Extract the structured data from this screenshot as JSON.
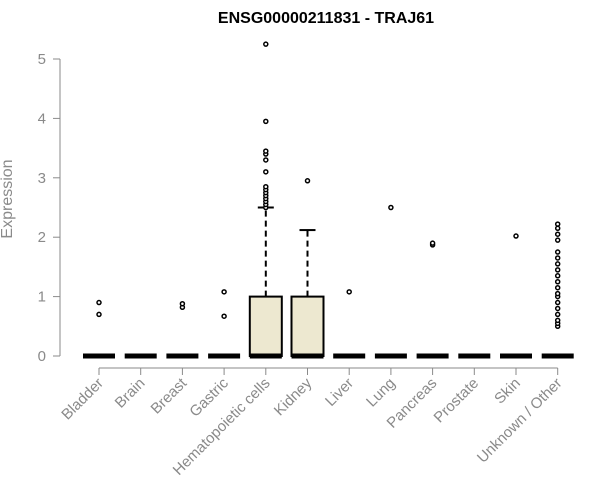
{
  "chart_data": {
    "type": "box",
    "title": "ENSG00000211831 - TRAJ61",
    "ylabel": "Expression",
    "xlabel": "",
    "ylim": [
      0,
      5.3
    ],
    "yticks": [
      0,
      1,
      2,
      3,
      4,
      5
    ],
    "colors": {
      "box_fill": "#ede8d0",
      "stroke": "#000000",
      "axis": "#8a8a8a"
    },
    "categories": [
      "Bladder",
      "Brain",
      "Breast",
      "Gastric",
      "Hematopoietic cells",
      "Kidney",
      "Liver",
      "Lung",
      "Pancreas",
      "Prostate",
      "Skin",
      "Unknown / Other"
    ],
    "boxes": [
      {
        "category": "Bladder",
        "q1": 0,
        "median": 0,
        "q3": 0,
        "whisker_low": 0,
        "whisker_high": 0,
        "outliers": [
          0.7,
          0.9
        ]
      },
      {
        "category": "Brain",
        "q1": 0,
        "median": 0,
        "q3": 0,
        "whisker_low": 0,
        "whisker_high": 0,
        "outliers": []
      },
      {
        "category": "Breast",
        "q1": 0,
        "median": 0,
        "q3": 0,
        "whisker_low": 0,
        "whisker_high": 0,
        "outliers": [
          0.82,
          0.88
        ]
      },
      {
        "category": "Gastric",
        "q1": 0,
        "median": 0,
        "q3": 0,
        "whisker_low": 0,
        "whisker_high": 0,
        "outliers": [
          0.67,
          1.08
        ]
      },
      {
        "category": "Hematopoietic cells",
        "q1": 0,
        "median": 0,
        "q3": 1.0,
        "whisker_low": 0,
        "whisker_high": 2.5,
        "outliers": [
          2.5,
          2.55,
          2.6,
          2.65,
          2.7,
          2.75,
          2.8,
          2.85,
          3.1,
          3.3,
          3.4,
          3.45,
          3.95,
          5.25
        ]
      },
      {
        "category": "Kidney",
        "q1": 0,
        "median": 0,
        "q3": 1.0,
        "whisker_low": 0,
        "whisker_high": 2.12,
        "outliers": [
          2.95
        ]
      },
      {
        "category": "Liver",
        "q1": 0,
        "median": 0,
        "q3": 0,
        "whisker_low": 0,
        "whisker_high": 0,
        "outliers": [
          1.08
        ]
      },
      {
        "category": "Lung",
        "q1": 0,
        "median": 0,
        "q3": 0,
        "whisker_low": 0,
        "whisker_high": 0,
        "outliers": [
          2.5
        ]
      },
      {
        "category": "Pancreas",
        "q1": 0,
        "median": 0,
        "q3": 0,
        "whisker_low": 0,
        "whisker_high": 0,
        "outliers": [
          1.87,
          1.9
        ]
      },
      {
        "category": "Prostate",
        "q1": 0,
        "median": 0,
        "q3": 0,
        "whisker_low": 0,
        "whisker_high": 0,
        "outliers": []
      },
      {
        "category": "Skin",
        "q1": 0,
        "median": 0,
        "q3": 0,
        "whisker_low": 0,
        "whisker_high": 0,
        "outliers": [
          2.02
        ]
      },
      {
        "category": "Unknown / Other",
        "q1": 0,
        "median": 0,
        "q3": 0,
        "whisker_low": 0,
        "whisker_high": 0,
        "outliers": [
          0.5,
          0.55,
          0.6,
          0.7,
          0.8,
          0.9,
          1.0,
          1.05,
          1.15,
          1.25,
          1.35,
          1.45,
          1.55,
          1.65,
          1.75,
          1.95,
          2.05,
          2.15,
          2.22
        ]
      }
    ]
  }
}
